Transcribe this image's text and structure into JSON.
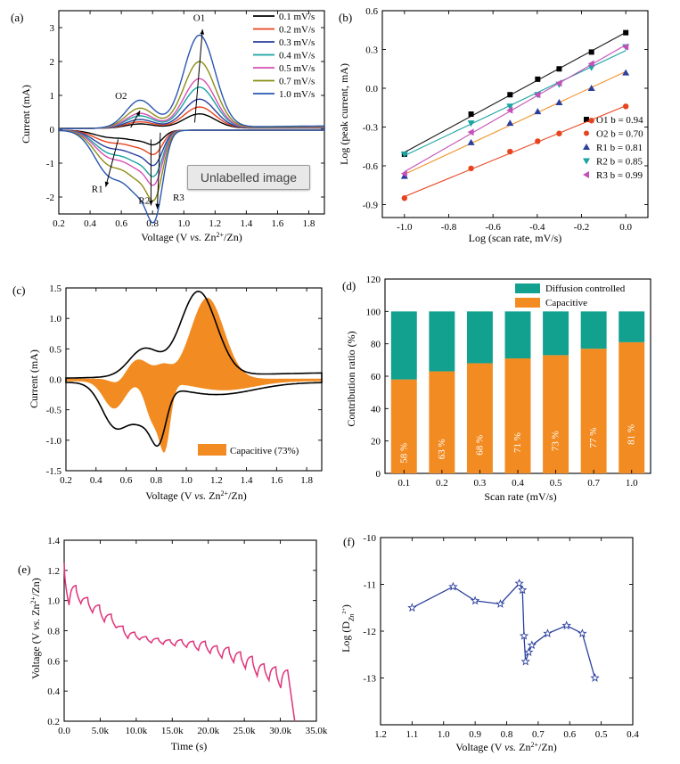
{
  "overlay": {
    "label": "Unlabelled image"
  },
  "chart_data": [
    {
      "panel": "(a)",
      "type": "line",
      "xlabel": "Voltage (V vs. Zn2+/Zn)",
      "ylabel": "Current (mA)",
      "xlim": [
        0.2,
        1.9
      ],
      "ylim": [
        -2.5,
        3.5
      ],
      "xticks": [
        "0.2",
        "0.4",
        "0.6",
        "0.8",
        "1.0",
        "1.2",
        "1.4",
        "1.6",
        "1.8"
      ],
      "yticks": [
        "-2",
        "-1",
        "0",
        "1",
        "2",
        "3"
      ],
      "annotations": [
        "O1",
        "O2",
        "R1",
        "R2",
        "R3"
      ],
      "series": [
        {
          "name": "0.1 mV/s",
          "color": "#000000",
          "peak_anodic": 0.42,
          "peak_cathodic": -0.33
        },
        {
          "name": "0.2 mV/s",
          "color": "#e8431f",
          "peak_anodic": 0.62,
          "peak_cathodic": -0.55
        },
        {
          "name": "0.3 mV/s",
          "color": "#2a3f9d",
          "peak_anodic": 0.85,
          "peak_cathodic": -0.8
        },
        {
          "name": "0.4 mV/s",
          "color": "#1aa3a3",
          "peak_anodic": 1.2,
          "peak_cathodic": -1.05
        },
        {
          "name": "0.5 mV/s",
          "color": "#d64fb4",
          "peak_anodic": 1.45,
          "peak_cathodic": -1.25
        },
        {
          "name": "0.7 mV/s",
          "color": "#8c8c16",
          "peak_anodic": 1.95,
          "peak_cathodic": -1.6
        },
        {
          "name": "1.0 mV/s",
          "color": "#2a56b0",
          "peak_anodic": 2.72,
          "peak_cathodic": -2.1
        }
      ]
    },
    {
      "panel": "(b)",
      "type": "scatter",
      "xlabel": "Log (scan rate, mV/s)",
      "ylabel": "Log (peak current, mA)",
      "xlim": [
        -1.1,
        0.1
      ],
      "ylim": [
        -1.0,
        0.6
      ],
      "xticks": [
        "-1.0",
        "-0.8",
        "-0.6",
        "-0.4",
        "-0.2",
        "0.0"
      ],
      "yticks": [
        "-0.9",
        "-0.6",
        "-0.3",
        "0.0",
        "0.3",
        "0.6"
      ],
      "x": [
        -1.0,
        -0.699,
        -0.523,
        -0.398,
        -0.301,
        -0.155,
        0.0
      ],
      "series": [
        {
          "name": "O1",
          "label": "O1 b = 0.94",
          "b": 0.94,
          "color": "#000000",
          "marker": "square",
          "values": [
            -0.51,
            -0.2,
            -0.05,
            0.07,
            0.15,
            0.28,
            0.43
          ]
        },
        {
          "name": "O2",
          "label": "O2 b = 0.70",
          "b": 0.7,
          "color": "#e8431f",
          "marker": "circle",
          "values": [
            -0.85,
            -0.62,
            -0.49,
            -0.41,
            -0.35,
            -0.25,
            -0.14
          ]
        },
        {
          "name": "R1",
          "label": "R1 b = 0.81",
          "b": 0.81,
          "color": "#2a3f9d",
          "marker": "triangle-up",
          "values": [
            -0.68,
            -0.42,
            -0.27,
            -0.18,
            -0.11,
            0.0,
            0.12
          ]
        },
        {
          "name": "R2",
          "label": "R2 b = 0.85",
          "b": 0.85,
          "color": "#1aa3a3",
          "marker": "triangle-down",
          "values": [
            -0.51,
            -0.27,
            -0.14,
            -0.05,
            0.03,
            0.16,
            0.32
          ]
        },
        {
          "name": "R3",
          "label": "R3 b = 0.99",
          "b": 0.99,
          "color": "#c450b8",
          "marker": "triangle-left",
          "values": [
            -0.66,
            -0.34,
            -0.17,
            -0.05,
            0.04,
            0.19,
            0.32
          ]
        }
      ],
      "fit_colors": [
        "#1a1a1a",
        "#e8431f",
        "#f0922a",
        "#1aa3a3",
        "#c450b8"
      ]
    },
    {
      "panel": "(c)",
      "type": "area",
      "xlabel": "Voltage (V vs. Zn2+/Zn)",
      "ylabel": "Current (mA)",
      "xlim": [
        0.2,
        1.9
      ],
      "ylim": [
        -1.5,
        1.5
      ],
      "xticks": [
        "0.2",
        "0.4",
        "0.6",
        "0.8",
        "1.0",
        "1.2",
        "1.4",
        "1.6",
        "1.8"
      ],
      "yticks": [
        "-1.5",
        "-1.0",
        "-0.5",
        "0.0",
        "0.5",
        "1.0",
        "1.5"
      ],
      "legend": "Capacitive (73%)",
      "fill_color": "#f28c22"
    },
    {
      "panel": "(d)",
      "type": "bar",
      "xlabel": "Scan rate (mV/s)",
      "ylabel": "Contribution ratio (%)",
      "ylim": [
        0,
        120
      ],
      "yticks": [
        "0",
        "20",
        "40",
        "60",
        "80",
        "100",
        "120"
      ],
      "categories": [
        "0.1",
        "0.2",
        "0.3",
        "0.4",
        "0.5",
        "0.7",
        "1.0"
      ],
      "data_labels": [
        "58 %",
        "63 %",
        "68 %",
        "71 %",
        "73 %",
        "77 %",
        "81 %"
      ],
      "series": [
        {
          "name": "Capacitive",
          "color": "#f28c22",
          "values": [
            58,
            63,
            68,
            71,
            73,
            77,
            81
          ]
        },
        {
          "name": "Diffusion controlled",
          "color": "#12a08f",
          "values": [
            42,
            37,
            32,
            29,
            27,
            23,
            19
          ]
        }
      ]
    },
    {
      "panel": "(e)",
      "type": "line",
      "xlabel": "Time (s)",
      "ylabel": "Voltage (V vs. Zn2+/Zn)",
      "xlim": [
        0,
        35000
      ],
      "ylim": [
        0.2,
        1.4
      ],
      "xticks": [
        "0.0",
        "5.0k",
        "10.0k",
        "15.0k",
        "20.0k",
        "25.0k",
        "30.0k",
        "35.0k"
      ],
      "yticks": [
        "0.2",
        "0.4",
        "0.6",
        "0.8",
        "1.0",
        "1.2",
        "1.4"
      ],
      "color": "#e0337a",
      "pulse_start": [
        1.25,
        1.1,
        1.02,
        0.97,
        0.91,
        0.83,
        0.79,
        0.76,
        0.75,
        0.74,
        0.74,
        0.73,
        0.73,
        0.7,
        0.69,
        0.66,
        0.63,
        0.58,
        0.56
      ],
      "pulse_end": [
        0.97,
        0.98,
        0.92,
        0.86,
        0.82,
        0.75,
        0.74,
        0.72,
        0.71,
        0.7,
        0.69,
        0.67,
        0.65,
        0.62,
        0.59,
        0.55,
        0.5,
        0.47,
        0.42
      ],
      "final_voltage": 0.2
    },
    {
      "panel": "(f)",
      "type": "line",
      "xlabel": "Voltage (V vs. Zn2+/Zn)",
      "ylabel": "Log (D Zn2+)",
      "xlim": [
        1.2,
        0.4
      ],
      "ylim": [
        -14,
        -10
      ],
      "xticks": [
        "1.2",
        "1.1",
        "1.0",
        "0.9",
        "0.8",
        "0.7",
        "0.6",
        "0.5",
        "0.4"
      ],
      "yticks": [
        "-10",
        "-11",
        "-12",
        "-13"
      ],
      "color": "#2a3f9d",
      "marker": "star",
      "x": [
        1.1,
        0.97,
        0.9,
        0.82,
        0.76,
        0.75,
        0.745,
        0.74,
        0.73,
        0.72,
        0.67,
        0.61,
        0.56,
        0.52
      ],
      "values": [
        -11.5,
        -11.05,
        -11.35,
        -11.42,
        -10.98,
        -11.12,
        -12.1,
        -12.65,
        -12.45,
        -12.3,
        -12.05,
        -11.88,
        -12.05,
        -13.0
      ]
    }
  ]
}
